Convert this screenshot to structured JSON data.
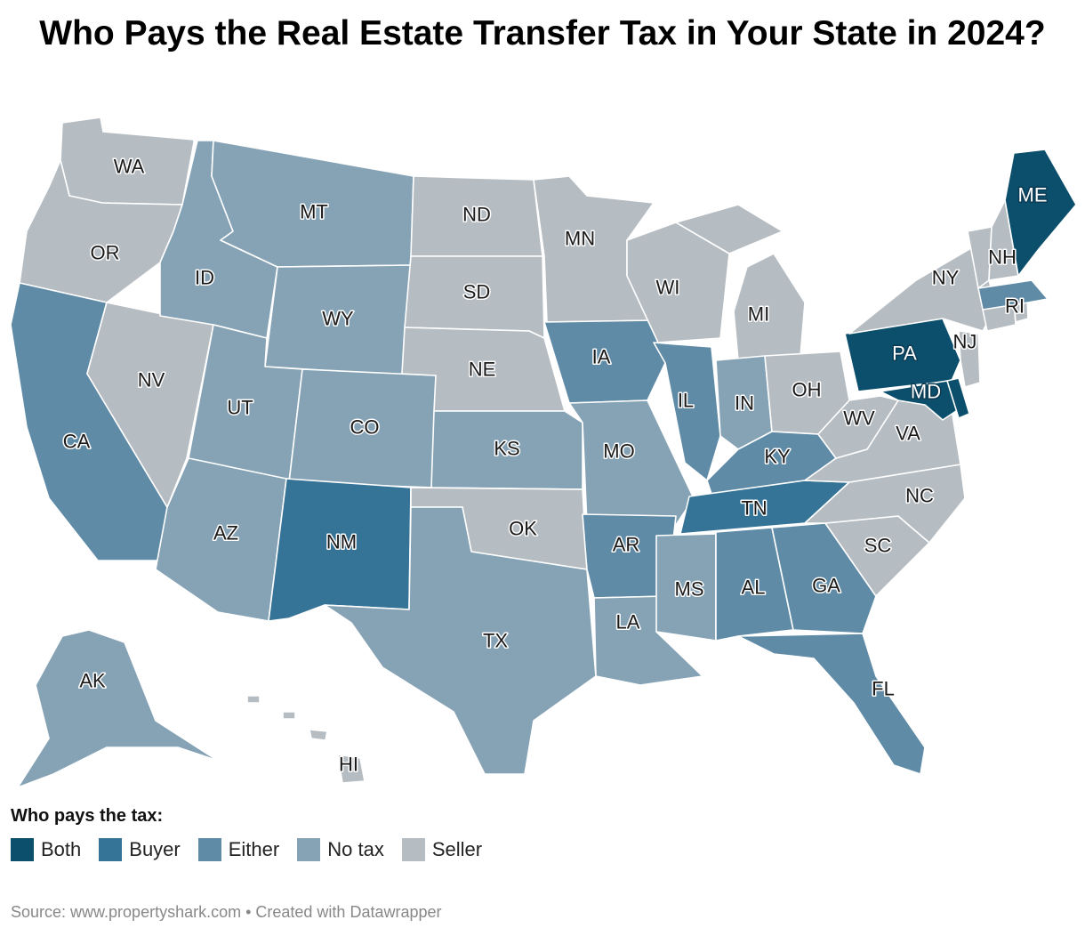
{
  "title": "Who Pays the Real Estate Transfer Tax in Your State in 2024?",
  "legend": {
    "title": "Who pays the tax:",
    "items": [
      {
        "label": "Both",
        "color": "#0b4f6c"
      },
      {
        "label": "Buyer",
        "color": "#357397"
      },
      {
        "label": "Either",
        "color": "#5f8ba7"
      },
      {
        "label": "No tax",
        "color": "#86a3b6"
      },
      {
        "label": "Seller",
        "color": "#b5bcc2"
      }
    ]
  },
  "states": {
    "WA": "Seller",
    "OR": "Seller",
    "CA": "Either",
    "NV": "Seller",
    "ID": "No tax",
    "MT": "No tax",
    "WY": "No tax",
    "UT": "No tax",
    "AZ": "No tax",
    "CO": "No tax",
    "NM": "Buyer",
    "ND": "Seller",
    "SD": "Seller",
    "NE": "Seller",
    "KS": "No tax",
    "OK": "Seller",
    "TX": "No tax",
    "MN": "Seller",
    "IA": "Either",
    "MO": "No tax",
    "AR": "Either",
    "LA": "No tax",
    "WI": "Seller",
    "IL": "Either",
    "MI": "Seller",
    "IN": "No tax",
    "OH": "Seller",
    "KY": "Either",
    "TN": "Buyer",
    "MS": "No tax",
    "AL": "Either",
    "GA": "Either",
    "FL": "Either",
    "SC": "Seller",
    "NC": "Seller",
    "VA": "Seller",
    "WV": "Seller",
    "PA": "Both",
    "NY": "Seller",
    "NJ": "Seller",
    "DE": "Both",
    "MD": "Both",
    "CT": "Seller",
    "RI": "Seller",
    "MA": "Either",
    "VT": "Seller",
    "NH": "Seller",
    "ME": "Both",
    "AK": "No tax",
    "HI": "Seller"
  },
  "source": "Source: www.propertyshark.com • Created with Datawrapper"
}
